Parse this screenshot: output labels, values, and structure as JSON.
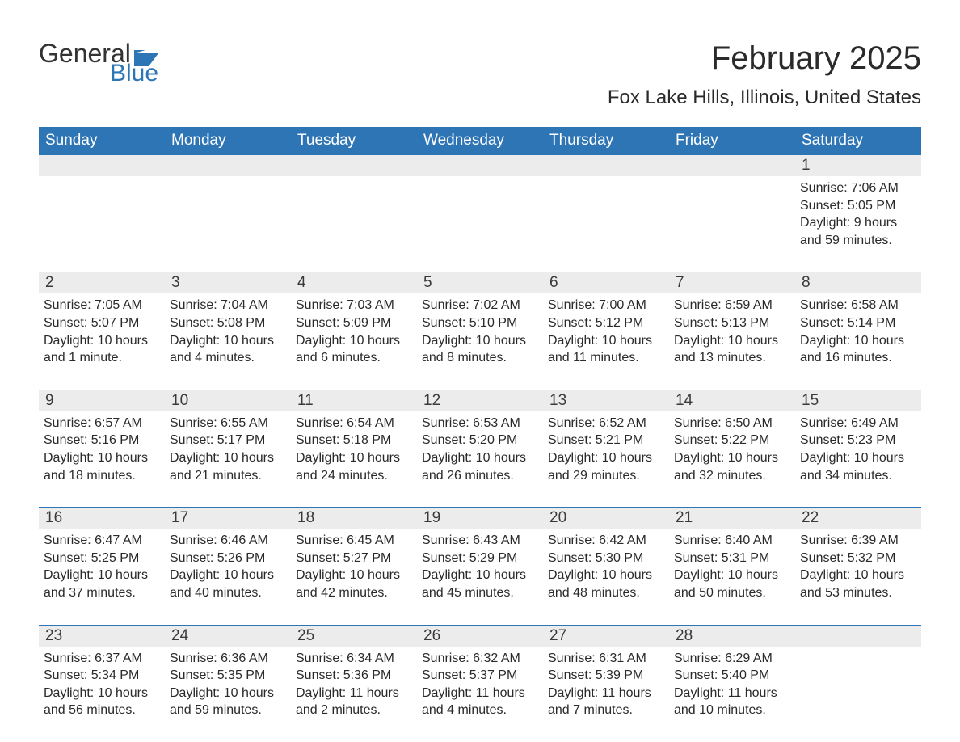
{
  "logo": {
    "line1": "General",
    "line2": "Blue",
    "flag_color": "#2e75b6",
    "text_color_1": "#333333",
    "text_color_2": "#2e75b6"
  },
  "title": "February 2025",
  "location": "Fox Lake Hills, Illinois, United States",
  "colors": {
    "header_bg": "#2e75b6",
    "header_text": "#ffffff",
    "daynum_bg": "#ececec",
    "row_border": "#2e75b6",
    "body_text": "#2a2a2a",
    "background": "#ffffff"
  },
  "typography": {
    "title_fontsize": 40,
    "location_fontsize": 24,
    "weekday_fontsize": 19,
    "daynum_fontsize": 19,
    "cell_fontsize": 16,
    "font_family": "Arial"
  },
  "weekdays": [
    "Sunday",
    "Monday",
    "Tuesday",
    "Wednesday",
    "Thursday",
    "Friday",
    "Saturday"
  ],
  "weeks": [
    [
      null,
      null,
      null,
      null,
      null,
      null,
      {
        "day": "1",
        "sunrise": "Sunrise: 7:06 AM",
        "sunset": "Sunset: 5:05 PM",
        "daylight": "Daylight: 9 hours and 59 minutes."
      }
    ],
    [
      {
        "day": "2",
        "sunrise": "Sunrise: 7:05 AM",
        "sunset": "Sunset: 5:07 PM",
        "daylight": "Daylight: 10 hours and 1 minute."
      },
      {
        "day": "3",
        "sunrise": "Sunrise: 7:04 AM",
        "sunset": "Sunset: 5:08 PM",
        "daylight": "Daylight: 10 hours and 4 minutes."
      },
      {
        "day": "4",
        "sunrise": "Sunrise: 7:03 AM",
        "sunset": "Sunset: 5:09 PM",
        "daylight": "Daylight: 10 hours and 6 minutes."
      },
      {
        "day": "5",
        "sunrise": "Sunrise: 7:02 AM",
        "sunset": "Sunset: 5:10 PM",
        "daylight": "Daylight: 10 hours and 8 minutes."
      },
      {
        "day": "6",
        "sunrise": "Sunrise: 7:00 AM",
        "sunset": "Sunset: 5:12 PM",
        "daylight": "Daylight: 10 hours and 11 minutes."
      },
      {
        "day": "7",
        "sunrise": "Sunrise: 6:59 AM",
        "sunset": "Sunset: 5:13 PM",
        "daylight": "Daylight: 10 hours and 13 minutes."
      },
      {
        "day": "8",
        "sunrise": "Sunrise: 6:58 AM",
        "sunset": "Sunset: 5:14 PM",
        "daylight": "Daylight: 10 hours and 16 minutes."
      }
    ],
    [
      {
        "day": "9",
        "sunrise": "Sunrise: 6:57 AM",
        "sunset": "Sunset: 5:16 PM",
        "daylight": "Daylight: 10 hours and 18 minutes."
      },
      {
        "day": "10",
        "sunrise": "Sunrise: 6:55 AM",
        "sunset": "Sunset: 5:17 PM",
        "daylight": "Daylight: 10 hours and 21 minutes."
      },
      {
        "day": "11",
        "sunrise": "Sunrise: 6:54 AM",
        "sunset": "Sunset: 5:18 PM",
        "daylight": "Daylight: 10 hours and 24 minutes."
      },
      {
        "day": "12",
        "sunrise": "Sunrise: 6:53 AM",
        "sunset": "Sunset: 5:20 PM",
        "daylight": "Daylight: 10 hours and 26 minutes."
      },
      {
        "day": "13",
        "sunrise": "Sunrise: 6:52 AM",
        "sunset": "Sunset: 5:21 PM",
        "daylight": "Daylight: 10 hours and 29 minutes."
      },
      {
        "day": "14",
        "sunrise": "Sunrise: 6:50 AM",
        "sunset": "Sunset: 5:22 PM",
        "daylight": "Daylight: 10 hours and 32 minutes."
      },
      {
        "day": "15",
        "sunrise": "Sunrise: 6:49 AM",
        "sunset": "Sunset: 5:23 PM",
        "daylight": "Daylight: 10 hours and 34 minutes."
      }
    ],
    [
      {
        "day": "16",
        "sunrise": "Sunrise: 6:47 AM",
        "sunset": "Sunset: 5:25 PM",
        "daylight": "Daylight: 10 hours and 37 minutes."
      },
      {
        "day": "17",
        "sunrise": "Sunrise: 6:46 AM",
        "sunset": "Sunset: 5:26 PM",
        "daylight": "Daylight: 10 hours and 40 minutes."
      },
      {
        "day": "18",
        "sunrise": "Sunrise: 6:45 AM",
        "sunset": "Sunset: 5:27 PM",
        "daylight": "Daylight: 10 hours and 42 minutes."
      },
      {
        "day": "19",
        "sunrise": "Sunrise: 6:43 AM",
        "sunset": "Sunset: 5:29 PM",
        "daylight": "Daylight: 10 hours and 45 minutes."
      },
      {
        "day": "20",
        "sunrise": "Sunrise: 6:42 AM",
        "sunset": "Sunset: 5:30 PM",
        "daylight": "Daylight: 10 hours and 48 minutes."
      },
      {
        "day": "21",
        "sunrise": "Sunrise: 6:40 AM",
        "sunset": "Sunset: 5:31 PM",
        "daylight": "Daylight: 10 hours and 50 minutes."
      },
      {
        "day": "22",
        "sunrise": "Sunrise: 6:39 AM",
        "sunset": "Sunset: 5:32 PM",
        "daylight": "Daylight: 10 hours and 53 minutes."
      }
    ],
    [
      {
        "day": "23",
        "sunrise": "Sunrise: 6:37 AM",
        "sunset": "Sunset: 5:34 PM",
        "daylight": "Daylight: 10 hours and 56 minutes."
      },
      {
        "day": "24",
        "sunrise": "Sunrise: 6:36 AM",
        "sunset": "Sunset: 5:35 PM",
        "daylight": "Daylight: 10 hours and 59 minutes."
      },
      {
        "day": "25",
        "sunrise": "Sunrise: 6:34 AM",
        "sunset": "Sunset: 5:36 PM",
        "daylight": "Daylight: 11 hours and 2 minutes."
      },
      {
        "day": "26",
        "sunrise": "Sunrise: 6:32 AM",
        "sunset": "Sunset: 5:37 PM",
        "daylight": "Daylight: 11 hours and 4 minutes."
      },
      {
        "day": "27",
        "sunrise": "Sunrise: 6:31 AM",
        "sunset": "Sunset: 5:39 PM",
        "daylight": "Daylight: 11 hours and 7 minutes."
      },
      {
        "day": "28",
        "sunrise": "Sunrise: 6:29 AM",
        "sunset": "Sunset: 5:40 PM",
        "daylight": "Daylight: 11 hours and 10 minutes."
      },
      null
    ]
  ]
}
